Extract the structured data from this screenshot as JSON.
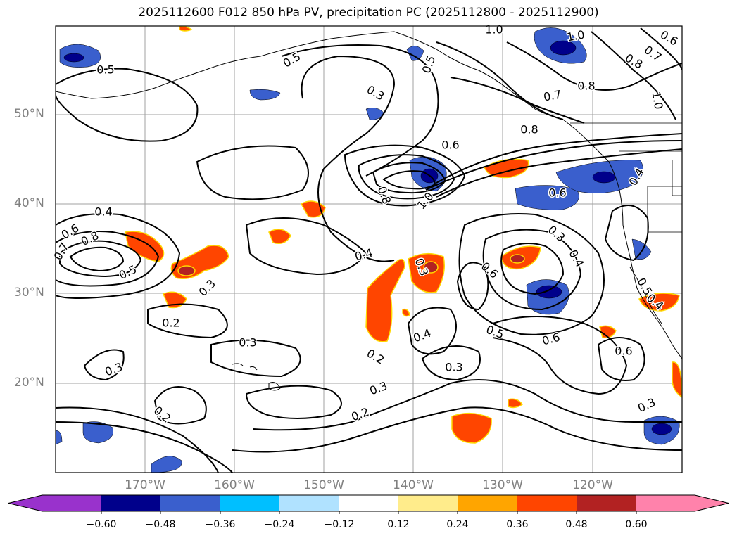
{
  "title": "2025112600 F012 850 hPa PV, precipitation PC (2025112800 - 2025112900)",
  "lat_labels": [
    "50°N",
    "40°N",
    "30°N",
    "20°N"
  ],
  "lon_labels": [
    "170°W",
    "160°W",
    "150°W",
    "140°W",
    "130°W",
    "120°W"
  ],
  "colorbar": {
    "labels": [
      "−0.60",
      "−0.48",
      "−0.36",
      "−0.24",
      "−0.12",
      "0.12",
      "0.24",
      "0.36",
      "0.48",
      "0.60"
    ],
    "colors": [
      "#9932cc",
      "#00008b",
      "#3a5fcd",
      "#00bfff",
      "#b0e2ff",
      "#ffffff",
      "#ffec8b",
      "#ffa500",
      "#ff4500",
      "#b22222",
      "#ff82ab"
    ]
  },
  "contour_labels": [
    {
      "text": "0.5"
    },
    {
      "text": "0.5"
    },
    {
      "text": "0.3"
    },
    {
      "text": "0.5"
    },
    {
      "text": "1.0"
    },
    {
      "text": "1.0"
    },
    {
      "text": "0.6"
    },
    {
      "text": "0.8"
    },
    {
      "text": "0.7"
    },
    {
      "text": "0.7"
    },
    {
      "text": "0.8"
    },
    {
      "text": "1.0"
    },
    {
      "text": "0.8"
    },
    {
      "text": "0.6"
    },
    {
      "text": "0.8"
    },
    {
      "text": "1.0"
    },
    {
      "text": "0.6"
    },
    {
      "text": "0.4"
    },
    {
      "text": "0.4"
    },
    {
      "text": "0.7"
    },
    {
      "text": "0.6"
    },
    {
      "text": "0.8"
    },
    {
      "text": "0.5"
    },
    {
      "text": "0.3"
    },
    {
      "text": "0.2"
    },
    {
      "text": "0.4"
    },
    {
      "text": "0.3"
    },
    {
      "text": "0.6"
    },
    {
      "text": "0.3"
    },
    {
      "text": "0.4"
    },
    {
      "text": "0.5"
    },
    {
      "text": "0.6"
    },
    {
      "text": "0.5"
    },
    {
      "text": "0.4"
    },
    {
      "text": "0.3"
    },
    {
      "text": "0.2"
    },
    {
      "text": "0.4"
    },
    {
      "text": "0.3"
    },
    {
      "text": "0.3"
    },
    {
      "text": "0.3"
    },
    {
      "text": "0.2"
    },
    {
      "text": "0.6"
    },
    {
      "text": "0.3"
    },
    {
      "text": "0.2"
    }
  ]
}
